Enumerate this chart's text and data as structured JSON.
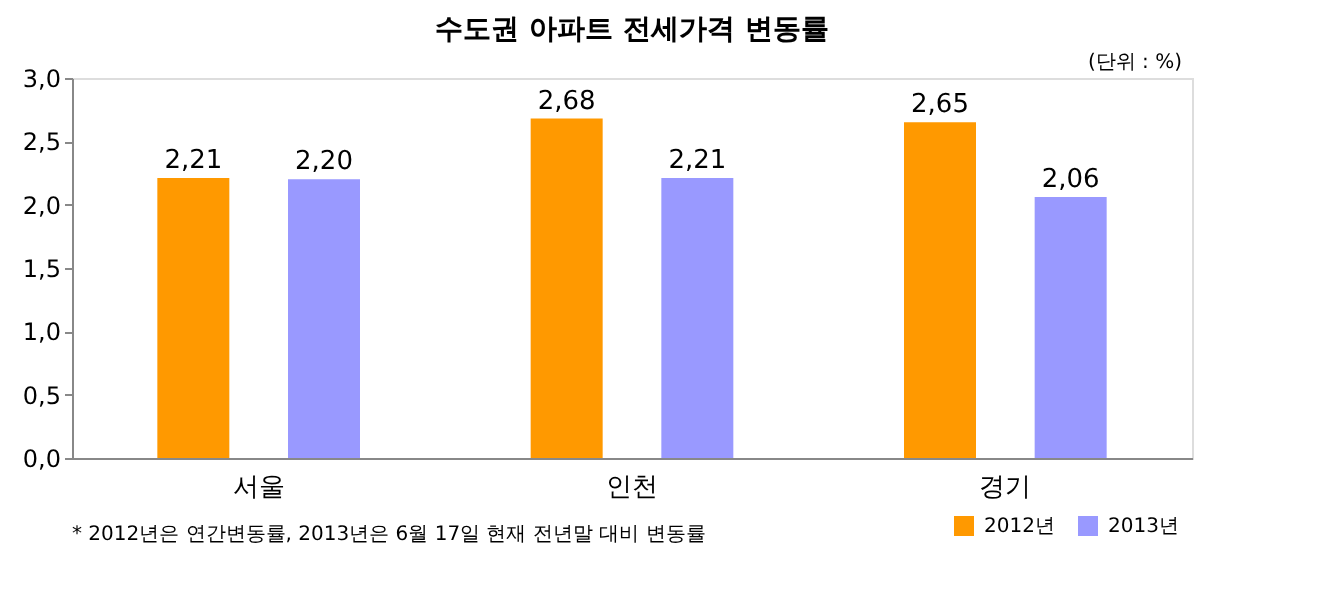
{
  "chart_data": {
    "type": "bar",
    "title": "수도권 아파트 전세가격 변동률",
    "categories": [
      "서울",
      "인천",
      "경기"
    ],
    "series": [
      {
        "name": "2012년",
        "color": "#ff9900",
        "values": [
          2.21,
          2.68,
          2.65
        ],
        "value_labels": [
          "2,21",
          "2,68",
          "2,65"
        ]
      },
      {
        "name": "2013년",
        "color": "#9999ff",
        "values": [
          2.2,
          2.21,
          2.06
        ],
        "value_labels": [
          "2,20",
          "2,21",
          "2,06"
        ]
      }
    ],
    "ylim": [
      0,
      3
    ],
    "yticks": [
      {
        "value": 0,
        "label": "0,0"
      },
      {
        "value": 0.5,
        "label": "0,5"
      },
      {
        "value": 1,
        "label": "1,0"
      },
      {
        "value": 1.5,
        "label": "1,5"
      },
      {
        "value": 2,
        "label": "2,0"
      },
      {
        "value": 2.5,
        "label": "2,5"
      },
      {
        "value": 3,
        "label": "3,0"
      }
    ],
    "annotations": [
      "(단위 : %)",
      "* 2012년은 연간변동률, 2013년은 6월 17일 현재 전년말 대비 변동률"
    ],
    "legend": "bottom right",
    "grid": false
  }
}
